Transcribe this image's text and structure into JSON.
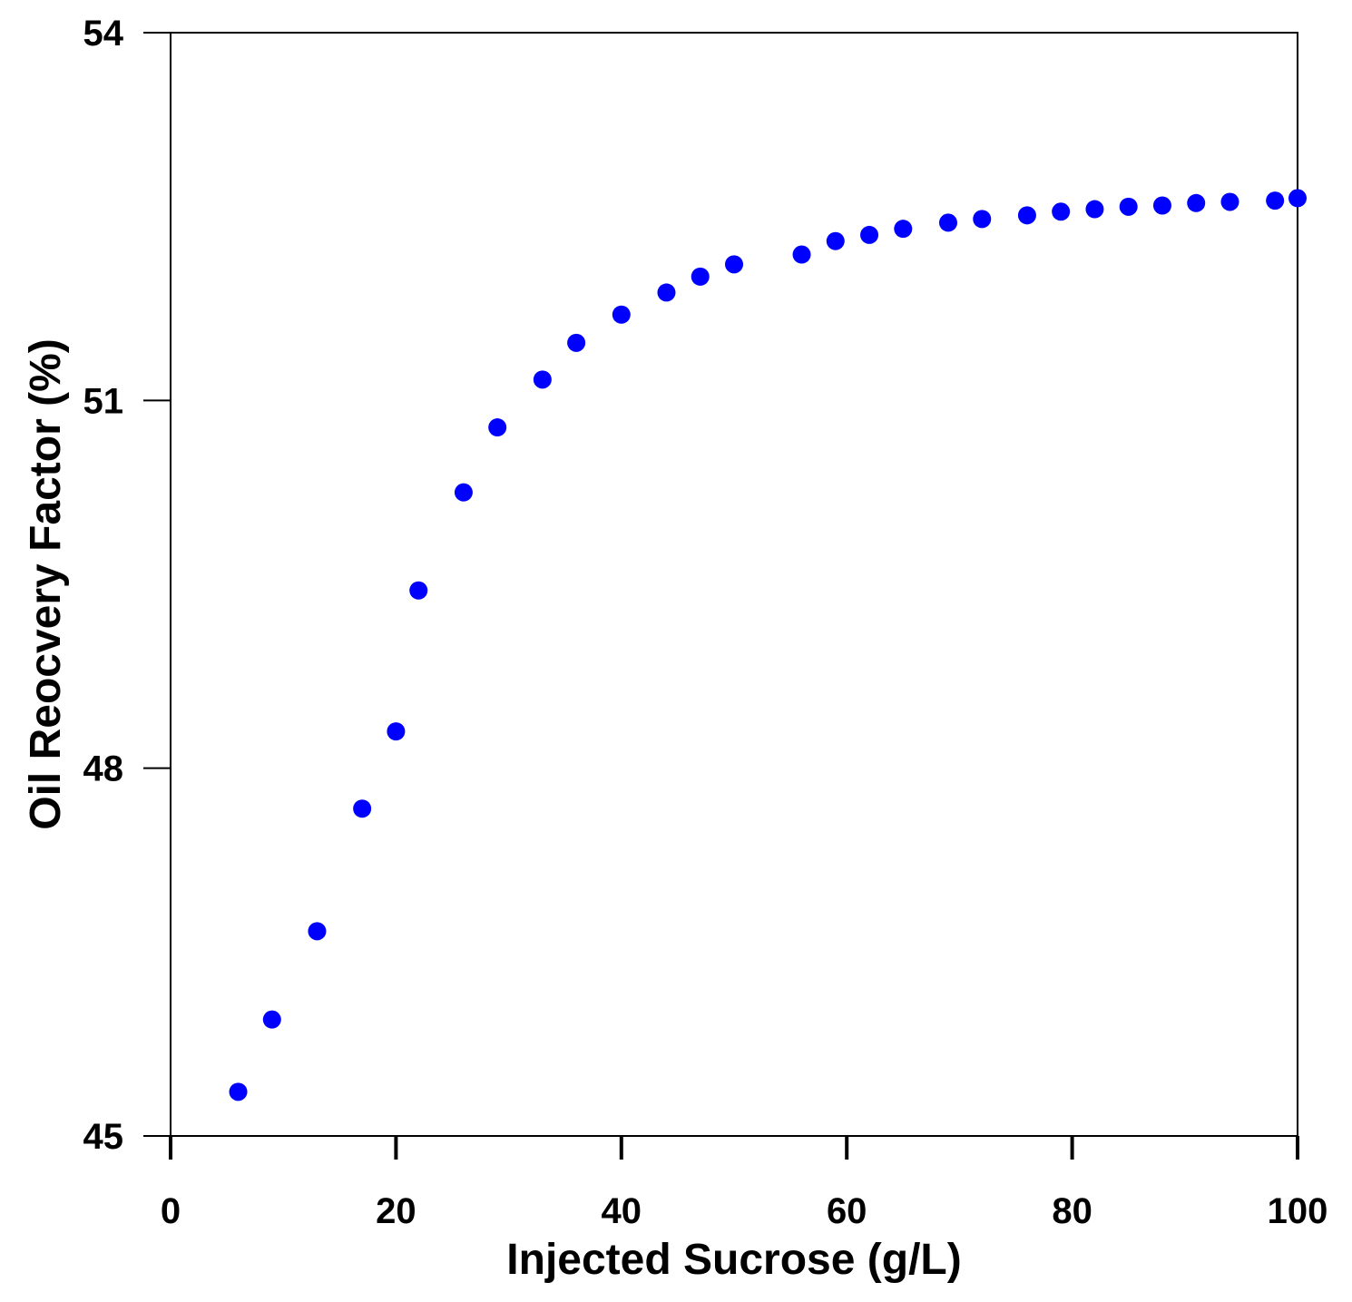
{
  "chart_data": {
    "type": "scatter",
    "title": "",
    "xlabel": "Injected Sucrose (g/L)",
    "ylabel": "Oil Reocvery Factor (%)",
    "xlim": [
      0,
      100
    ],
    "ylim": [
      45,
      54
    ],
    "xticks": [
      0,
      20,
      40,
      60,
      80,
      100
    ],
    "yticks": [
      45,
      48,
      51,
      54
    ],
    "grid": false,
    "marker_color": "#0000ff",
    "series": [
      {
        "name": "Oil recovery factor",
        "x": [
          6,
          9,
          13,
          17,
          20,
          22,
          26,
          29,
          33,
          36,
          40,
          44,
          47,
          50,
          56,
          59,
          62,
          65,
          69,
          72,
          76,
          79,
          82,
          85,
          88,
          91,
          94,
          98,
          100
        ],
        "y": [
          45.36,
          45.95,
          46.67,
          47.67,
          48.3,
          49.45,
          50.25,
          50.78,
          51.17,
          51.47,
          51.7,
          51.88,
          52.01,
          52.11,
          52.19,
          52.3,
          52.35,
          52.4,
          52.45,
          52.48,
          52.51,
          52.54,
          52.56,
          52.58,
          52.59,
          52.61,
          52.62,
          52.63,
          52.65
        ]
      }
    ]
  }
}
